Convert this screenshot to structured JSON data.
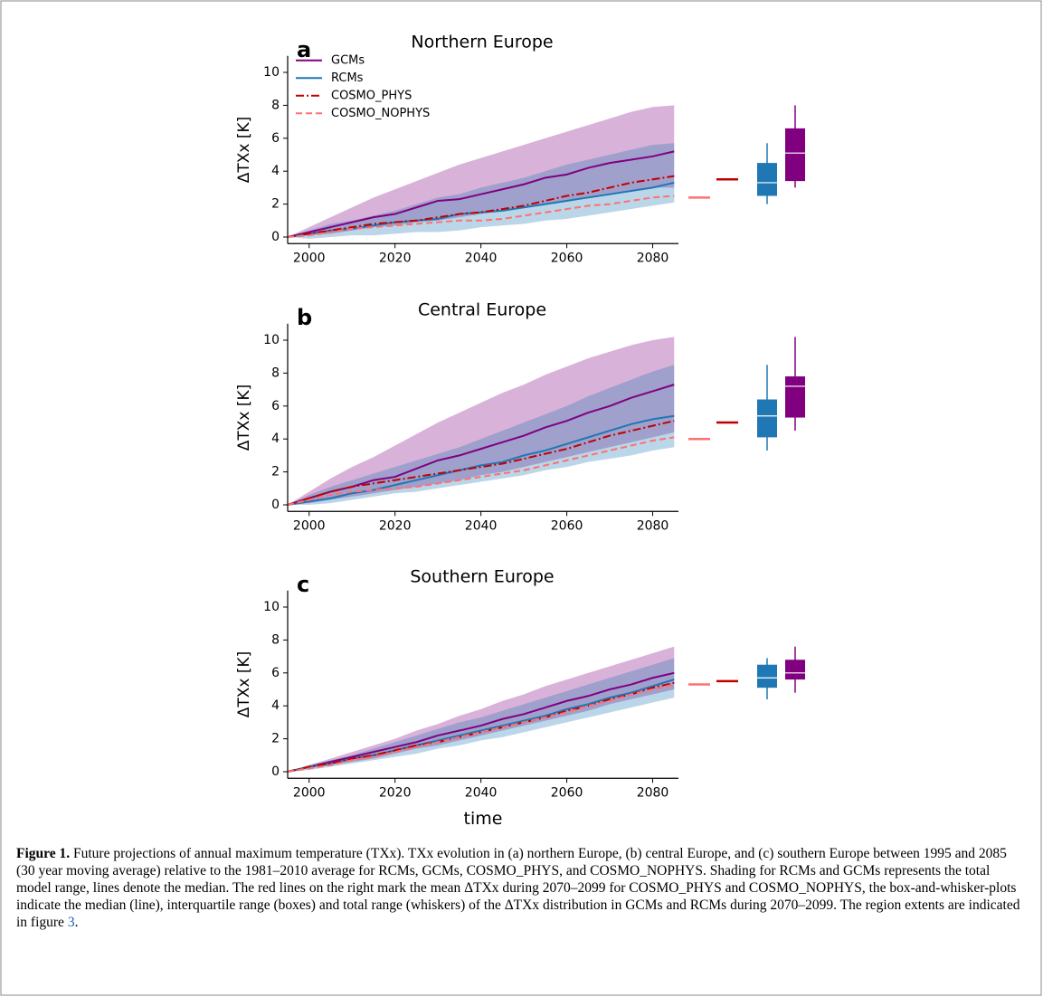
{
  "chart_data": [
    {
      "type": "line",
      "panel": "a",
      "title": "Northern Europe",
      "ylabel": "ΔTXx [K]",
      "legend": "upper left",
      "x": [
        1995,
        2000,
        2005,
        2010,
        2015,
        2020,
        2025,
        2030,
        2035,
        2040,
        2045,
        2050,
        2055,
        2060,
        2065,
        2070,
        2075,
        2080,
        2085
      ],
      "xlim": [
        1995,
        2086
      ],
      "xticks": [
        2000,
        2020,
        2040,
        2060,
        2080
      ],
      "ylim": [
        -0.4,
        11
      ],
      "yticks": [
        0,
        2,
        4,
        6,
        8,
        10
      ],
      "ranges": [
        {
          "color": "#800080",
          "low": [
            0,
            0.1,
            0.2,
            0.4,
            0.6,
            0.7,
            0.9,
            1.0,
            1.2,
            1.4,
            1.6,
            1.8,
            2.0,
            2.2,
            2.4,
            2.6,
            2.8,
            3.0,
            3.0
          ],
          "high": [
            0,
            0.6,
            1.2,
            1.8,
            2.4,
            2.9,
            3.4,
            3.9,
            4.4,
            4.8,
            5.2,
            5.6,
            6.0,
            6.4,
            6.8,
            7.2,
            7.6,
            7.9,
            8.0
          ]
        },
        {
          "color": "#1f77b4",
          "low": [
            0,
            -0.1,
            0,
            0.1,
            0.1,
            0.2,
            0.3,
            0.3,
            0.4,
            0.6,
            0.7,
            0.8,
            1.0,
            1.1,
            1.3,
            1.5,
            1.7,
            1.9,
            2.1
          ],
          "high": [
            0,
            0.4,
            0.8,
            1.0,
            1.3,
            1.6,
            2.0,
            2.4,
            2.6,
            3.0,
            3.3,
            3.6,
            4.0,
            4.4,
            4.7,
            5.0,
            5.3,
            5.6,
            5.7
          ]
        }
      ],
      "series": [
        {
          "name": "GCMs",
          "color": "#800080",
          "dash": "solid",
          "values": [
            0,
            0.3,
            0.6,
            0.9,
            1.2,
            1.4,
            1.8,
            2.2,
            2.3,
            2.6,
            2.9,
            3.2,
            3.6,
            3.8,
            4.2,
            4.5,
            4.7,
            4.9,
            5.2
          ]
        },
        {
          "name": "RCMs",
          "color": "#1f77b4",
          "dash": "solid",
          "values": [
            0,
            0.2,
            0.4,
            0.5,
            0.7,
            0.9,
            1.0,
            1.1,
            1.4,
            1.5,
            1.6,
            1.8,
            2.0,
            2.2,
            2.4,
            2.6,
            2.8,
            3.0,
            3.3
          ]
        },
        {
          "name": "COSMO_PHYS",
          "color": "#c00000",
          "dash": "dashdot",
          "values": [
            0,
            0.2,
            0.4,
            0.6,
            0.8,
            0.9,
            1.0,
            1.2,
            1.4,
            1.5,
            1.7,
            1.9,
            2.2,
            2.5,
            2.7,
            3.0,
            3.3,
            3.5,
            3.7
          ]
        },
        {
          "name": "COSMO_NOPHYS",
          "color": "#ff7070",
          "dash": "dashed",
          "values": [
            0,
            0.1,
            0.3,
            0.5,
            0.6,
            0.7,
            0.8,
            0.9,
            1.0,
            1.0,
            1.1,
            1.3,
            1.5,
            1.7,
            1.9,
            2.0,
            2.2,
            2.4,
            2.5
          ]
        }
      ],
      "means": [
        {
          "color": "#ff7070",
          "value": 2.4
        },
        {
          "color": "#c00000",
          "value": 3.5
        }
      ],
      "boxes": [
        {
          "color": "#1f77b4",
          "whislo": 2.0,
          "q1": 2.5,
          "med": 3.3,
          "q3": 4.5,
          "whishi": 5.7
        },
        {
          "color": "#800080",
          "whislo": 3.0,
          "q1": 3.4,
          "med": 5.1,
          "q3": 6.6,
          "whishi": 8.0
        }
      ]
    },
    {
      "type": "line",
      "panel": "b",
      "title": "Central Europe",
      "ylabel": "ΔTXx [K]",
      "x": [
        1995,
        2000,
        2005,
        2010,
        2015,
        2020,
        2025,
        2030,
        2035,
        2040,
        2045,
        2050,
        2055,
        2060,
        2065,
        2070,
        2075,
        2080,
        2085
      ],
      "xlim": [
        1995,
        2086
      ],
      "xticks": [
        2000,
        2020,
        2040,
        2060,
        2080
      ],
      "ylim": [
        -0.4,
        11
      ],
      "yticks": [
        0,
        2,
        4,
        6,
        8,
        10
      ],
      "ranges": [
        {
          "color": "#800080",
          "low": [
            0,
            0.1,
            0.3,
            0.5,
            0.7,
            0.9,
            1.1,
            1.3,
            1.5,
            1.8,
            2.0,
            2.3,
            2.6,
            2.9,
            3.2,
            3.5,
            3.8,
            4.1,
            4.4
          ],
          "high": [
            0,
            0.8,
            1.6,
            2.3,
            2.9,
            3.6,
            4.3,
            5.0,
            5.6,
            6.2,
            6.8,
            7.3,
            7.9,
            8.4,
            8.9,
            9.3,
            9.7,
            10.0,
            10.2
          ]
        },
        {
          "color": "#1f77b4",
          "low": [
            0,
            0,
            0.1,
            0.3,
            0.5,
            0.7,
            0.8,
            1.0,
            1.2,
            1.4,
            1.6,
            1.8,
            2.1,
            2.3,
            2.6,
            2.8,
            3.0,
            3.3,
            3.5
          ],
          "high": [
            0,
            0.6,
            1.1,
            1.5,
            1.9,
            2.3,
            2.7,
            3.1,
            3.5,
            4.0,
            4.5,
            5.0,
            5.5,
            6.0,
            6.6,
            7.1,
            7.6,
            8.1,
            8.5
          ]
        }
      ],
      "series": [
        {
          "color": "#800080",
          "dash": "solid",
          "values": [
            0,
            0.4,
            0.8,
            1.1,
            1.5,
            1.7,
            2.2,
            2.7,
            3.0,
            3.4,
            3.8,
            4.2,
            4.7,
            5.1,
            5.6,
            6.0,
            6.5,
            6.9,
            7.3
          ]
        },
        {
          "color": "#1f77b4",
          "dash": "solid",
          "values": [
            0,
            0.2,
            0.4,
            0.7,
            0.9,
            1.2,
            1.5,
            1.8,
            2.1,
            2.4,
            2.6,
            3.0,
            3.3,
            3.7,
            4.1,
            4.5,
            4.9,
            5.2,
            5.4
          ]
        },
        {
          "color": "#c00000",
          "dash": "dashdot",
          "values": [
            0,
            0.4,
            0.8,
            1.1,
            1.3,
            1.5,
            1.7,
            1.9,
            2.1,
            2.3,
            2.5,
            2.8,
            3.1,
            3.4,
            3.8,
            4.2,
            4.5,
            4.8,
            5.1
          ]
        },
        {
          "color": "#ff7070",
          "dash": "dashed",
          "values": [
            0,
            0.3,
            0.6,
            0.8,
            0.9,
            1.0,
            1.1,
            1.3,
            1.5,
            1.7,
            1.9,
            2.1,
            2.4,
            2.7,
            3.0,
            3.3,
            3.6,
            3.9,
            4.1
          ]
        }
      ],
      "means": [
        {
          "color": "#ff7070",
          "value": 4.0
        },
        {
          "color": "#c00000",
          "value": 5.0
        }
      ],
      "boxes": [
        {
          "color": "#1f77b4",
          "whislo": 3.3,
          "q1": 4.1,
          "med": 5.4,
          "q3": 6.4,
          "whishi": 8.5
        },
        {
          "color": "#800080",
          "whislo": 4.5,
          "q1": 5.3,
          "med": 7.2,
          "q3": 7.8,
          "whishi": 10.2
        }
      ]
    },
    {
      "type": "line",
      "panel": "c",
      "title": "Southern Europe",
      "ylabel": "ΔTXx [K]",
      "xlabel": "time",
      "x": [
        1995,
        2000,
        2005,
        2010,
        2015,
        2020,
        2025,
        2030,
        2035,
        2040,
        2045,
        2050,
        2055,
        2060,
        2065,
        2070,
        2075,
        2080,
        2085
      ],
      "xlim": [
        1995,
        2086
      ],
      "xticks": [
        2000,
        2020,
        2040,
        2060,
        2080
      ],
      "ylim": [
        -0.4,
        11
      ],
      "yticks": [
        0,
        2,
        4,
        6,
        8,
        10
      ],
      "ranges": [
        {
          "color": "#800080",
          "low": [
            0,
            0.2,
            0.4,
            0.6,
            0.8,
            1.1,
            1.4,
            1.6,
            1.9,
            2.2,
            2.5,
            2.8,
            3.1,
            3.4,
            3.7,
            4.1,
            4.4,
            4.7,
            5.0
          ],
          "high": [
            0,
            0.4,
            0.8,
            1.2,
            1.6,
            2.0,
            2.5,
            2.9,
            3.4,
            3.8,
            4.3,
            4.7,
            5.2,
            5.6,
            6.0,
            6.4,
            6.8,
            7.2,
            7.6
          ]
        },
        {
          "color": "#1f77b4",
          "low": [
            0,
            0.1,
            0.3,
            0.5,
            0.7,
            0.9,
            1.1,
            1.4,
            1.6,
            1.9,
            2.1,
            2.4,
            2.7,
            3.0,
            3.3,
            3.6,
            3.9,
            4.2,
            4.5
          ],
          "high": [
            0,
            0.4,
            0.7,
            1.0,
            1.4,
            1.8,
            2.2,
            2.6,
            3.0,
            3.3,
            3.7,
            4.1,
            4.5,
            4.9,
            5.3,
            5.7,
            6.1,
            6.5,
            6.9
          ]
        }
      ],
      "series": [
        {
          "color": "#800080",
          "dash": "solid",
          "values": [
            0,
            0.3,
            0.6,
            0.9,
            1.2,
            1.5,
            1.8,
            2.2,
            2.5,
            2.8,
            3.2,
            3.5,
            3.9,
            4.3,
            4.6,
            5.0,
            5.3,
            5.7,
            6.0
          ]
        },
        {
          "color": "#1f77b4",
          "dash": "solid",
          "values": [
            0,
            0.3,
            0.5,
            0.8,
            1.0,
            1.3,
            1.6,
            1.9,
            2.2,
            2.5,
            2.8,
            3.1,
            3.4,
            3.8,
            4.1,
            4.5,
            4.8,
            5.2,
            5.6
          ]
        },
        {
          "color": "#c00000",
          "dash": "dashdot",
          "values": [
            0,
            0.3,
            0.5,
            0.8,
            1.0,
            1.3,
            1.6,
            1.8,
            2.1,
            2.4,
            2.7,
            3.0,
            3.3,
            3.7,
            4.0,
            4.4,
            4.7,
            5.1,
            5.4
          ]
        },
        {
          "color": "#ff7070",
          "dash": "dashed",
          "values": [
            0,
            0.2,
            0.4,
            0.7,
            0.9,
            1.2,
            1.5,
            1.8,
            2.1,
            2.4,
            2.7,
            3.0,
            3.3,
            3.6,
            4.0,
            4.3,
            4.7,
            5.0,
            5.3
          ]
        }
      ],
      "means": [
        {
          "color": "#ff7070",
          "value": 5.3
        },
        {
          "color": "#c00000",
          "value": 5.5
        }
      ],
      "boxes": [
        {
          "color": "#1f77b4",
          "whislo": 4.4,
          "q1": 5.1,
          "med": 5.7,
          "q3": 6.5,
          "whishi": 6.9
        },
        {
          "color": "#800080",
          "whislo": 4.8,
          "q1": 5.6,
          "med": 6.0,
          "q3": 6.8,
          "whishi": 7.6
        }
      ]
    }
  ],
  "caption": {
    "label": "Figure 1.",
    "text": "Future projections of annual maximum temperature (TXx). TXx evolution in (a) northern Europe, (b) central Europe, and (c) southern Europe between 1995 and 2085 (30 year moving average) relative to the 1981–2010 average for RCMs, GCMs, COSMO_PHYS, and COSMO_NOPHYS. Shading for RCMs and GCMs represents the total model range, lines denote the median. The red lines on the right mark the mean ΔTXx during 2070–2099 for COSMO_PHYS and COSMO_NOPHYS, the box-and-whisker-plots indicate the median (line), interquartile range (boxes) and total range (whiskers) of the ΔTXx distribution in GCMs and RCMs during 2070–2099. The region extents are indicated in figure ",
    "link": "3",
    "end": "."
  }
}
